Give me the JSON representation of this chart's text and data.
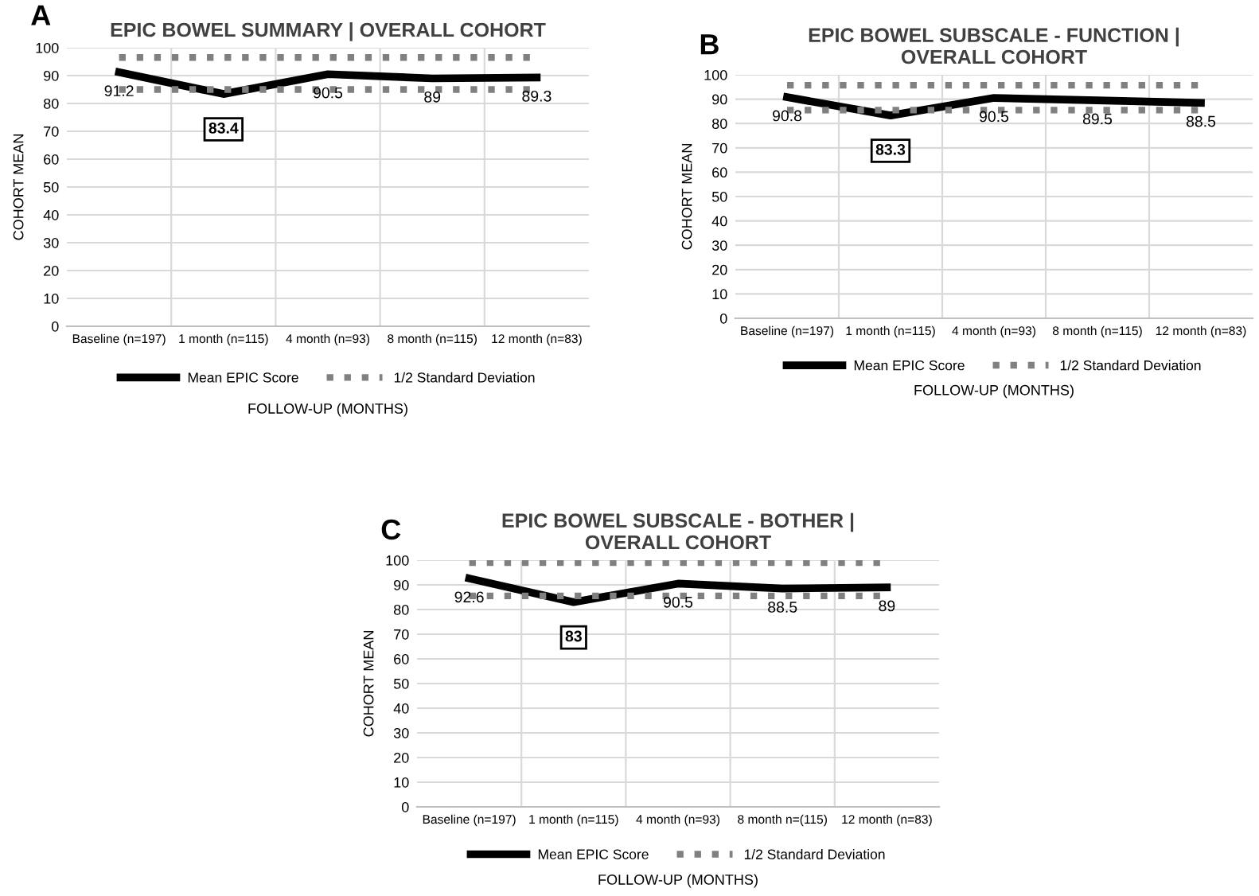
{
  "chart_data": [
    {
      "type": "line",
      "title": "EPIC BOWEL SUMMARY | OVERALL COHORT",
      "ylabel": "COHORT MEAN",
      "xlabel": "FOLLOW-UP (MONTHS)",
      "annotations": [
        "A"
      ],
      "categories": [
        "Baseline (n=197)",
        "1 month (n=115)",
        "4 month (n=93)",
        "8 month (n=115)",
        "12 month (n=83)"
      ],
      "series": [
        {
          "name": "Mean EPIC Score",
          "color": "#000000",
          "values": [
            91.2,
            83.4,
            90.5,
            89,
            89.3
          ],
          "line_style": "solid",
          "data_labels": true
        },
        {
          "name": "1/2 Standard Deviation",
          "color": "#808080",
          "values": [
            96.5,
            96.5,
            96.5,
            96.5,
            96.5
          ],
          "line_style": "dotted"
        },
        {
          "color": "#808080",
          "values": [
            85,
            85,
            85,
            85,
            85
          ],
          "line_style": "dotted"
        }
      ],
      "ylim": [
        0,
        100
      ],
      "yticks": [
        0,
        10,
        20,
        30,
        40,
        50,
        60,
        70,
        80,
        90,
        100
      ],
      "grid": true,
      "legend": "bottom",
      "marker": "none"
    },
    {
      "type": "line",
      "title": "EPIC BOWEL SUBSCALE - FUNCTION |\nOVERALL COHORT",
      "ylabel": "COHORT MEAN",
      "xlabel": "FOLLOW-UP (MONTHS)",
      "annotations": [
        "B"
      ],
      "categories": [
        "Baseline (n=197)",
        "1 month (n=115)",
        "4 month (n=93)",
        "8 month (n=115)",
        "12 month (n=83)"
      ],
      "series": [
        {
          "name": "Mean EPIC Score",
          "color": "#000000",
          "values": [
            90.8,
            83.3,
            90.5,
            89.5,
            88.5
          ],
          "line_style": "solid",
          "data_labels": true
        },
        {
          "name": "1/2 Standard Deviation",
          "color": "#808080",
          "values": [
            95.7,
            95.7,
            95.7,
            95.7,
            95.7
          ],
          "line_style": "dotted"
        },
        {
          "color": "#808080",
          "values": [
            85.5,
            85.5,
            85.5,
            85.5,
            85.5
          ],
          "line_style": "dotted"
        }
      ],
      "ylim": [
        0,
        100
      ],
      "yticks": [
        0,
        10,
        20,
        30,
        40,
        50,
        60,
        70,
        80,
        90,
        100
      ],
      "grid": true,
      "legend": "bottom",
      "marker": "none"
    },
    {
      "type": "line",
      "title": "EPIC BOWEL SUBSCALE - BOTHER |\nOVERALL COHORT",
      "ylabel": "COHORT MEAN",
      "xlabel": "FOLLOW-UP (MONTHS)",
      "annotations": [
        "C"
      ],
      "categories": [
        "Baseline (n=197)",
        "1 month (n=115)",
        "4 month (n=93)",
        "8 month n=(115)",
        "12 month (n=83)"
      ],
      "series": [
        {
          "name": "Mean EPIC Score",
          "color": "#000000",
          "values": [
            92.6,
            83,
            90.5,
            88.5,
            89
          ],
          "line_style": "solid",
          "data_labels": true
        },
        {
          "name": "1/2 Standard Deviation",
          "color": "#808080",
          "values": [
            99,
            99,
            99,
            99,
            99
          ],
          "line_style": "dotted"
        },
        {
          "color": "#808080",
          "values": [
            85.5,
            85.5,
            85.5,
            85.5,
            85.5
          ],
          "line_style": "dotted"
        }
      ],
      "ylim": [
        0,
        100
      ],
      "yticks": [
        0,
        10,
        20,
        30,
        40,
        50,
        60,
        70,
        80,
        90,
        100
      ],
      "grid": true,
      "legend": "bottom",
      "marker": "none"
    }
  ]
}
